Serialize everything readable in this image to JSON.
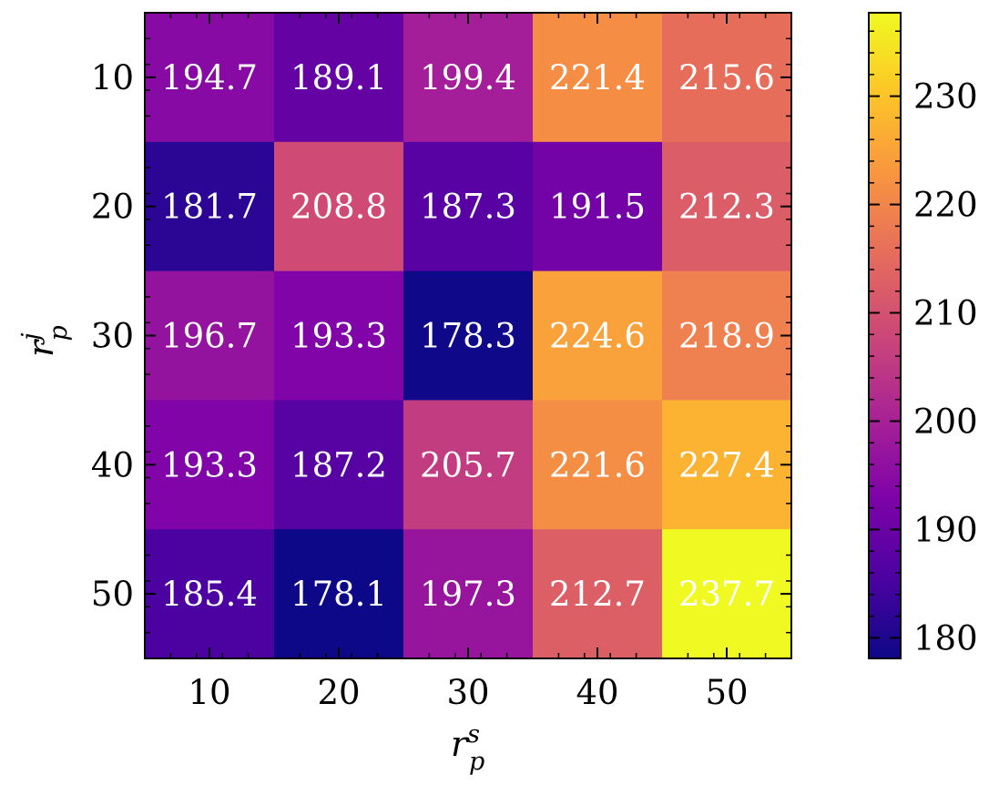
{
  "chart_data": {
    "type": "heatmap",
    "colormap": "plasma",
    "x_categories": [
      "10",
      "20",
      "30",
      "40",
      "50"
    ],
    "y_categories": [
      "10",
      "20",
      "30",
      "40",
      "50"
    ],
    "values": [
      [
        194.7,
        189.1,
        199.4,
        221.4,
        215.6
      ],
      [
        181.7,
        208.8,
        187.3,
        191.5,
        212.3
      ],
      [
        196.7,
        193.3,
        178.3,
        224.6,
        218.9
      ],
      [
        193.3,
        187.2,
        205.7,
        221.6,
        227.4
      ],
      [
        185.4,
        178.1,
        197.3,
        212.7,
        237.7
      ]
    ],
    "cell_labels": [
      [
        "194.7",
        "189.1",
        "199.4",
        "221.4",
        "215.6"
      ],
      [
        "181.7",
        "208.8",
        "187.3",
        "191.5",
        "212.3"
      ],
      [
        "196.7",
        "193.3",
        "178.3",
        "224.6",
        "218.9"
      ],
      [
        "193.3",
        "187.2",
        "205.7",
        "221.6",
        "227.4"
      ],
      [
        "185.4",
        "178.1",
        "197.3",
        "212.7",
        "237.7"
      ]
    ],
    "xlabel": {
      "base": "r",
      "sup": "s",
      "sub": "p"
    },
    "ylabel": {
      "base": "r",
      "sup": "j",
      "sub": "p"
    },
    "colorbar": {
      "min": 178.1,
      "max": 237.7,
      "ticks": [
        180,
        190,
        200,
        210,
        220,
        230
      ],
      "tick_labels": [
        "180",
        "190",
        "200",
        "210",
        "220",
        "230"
      ]
    }
  }
}
